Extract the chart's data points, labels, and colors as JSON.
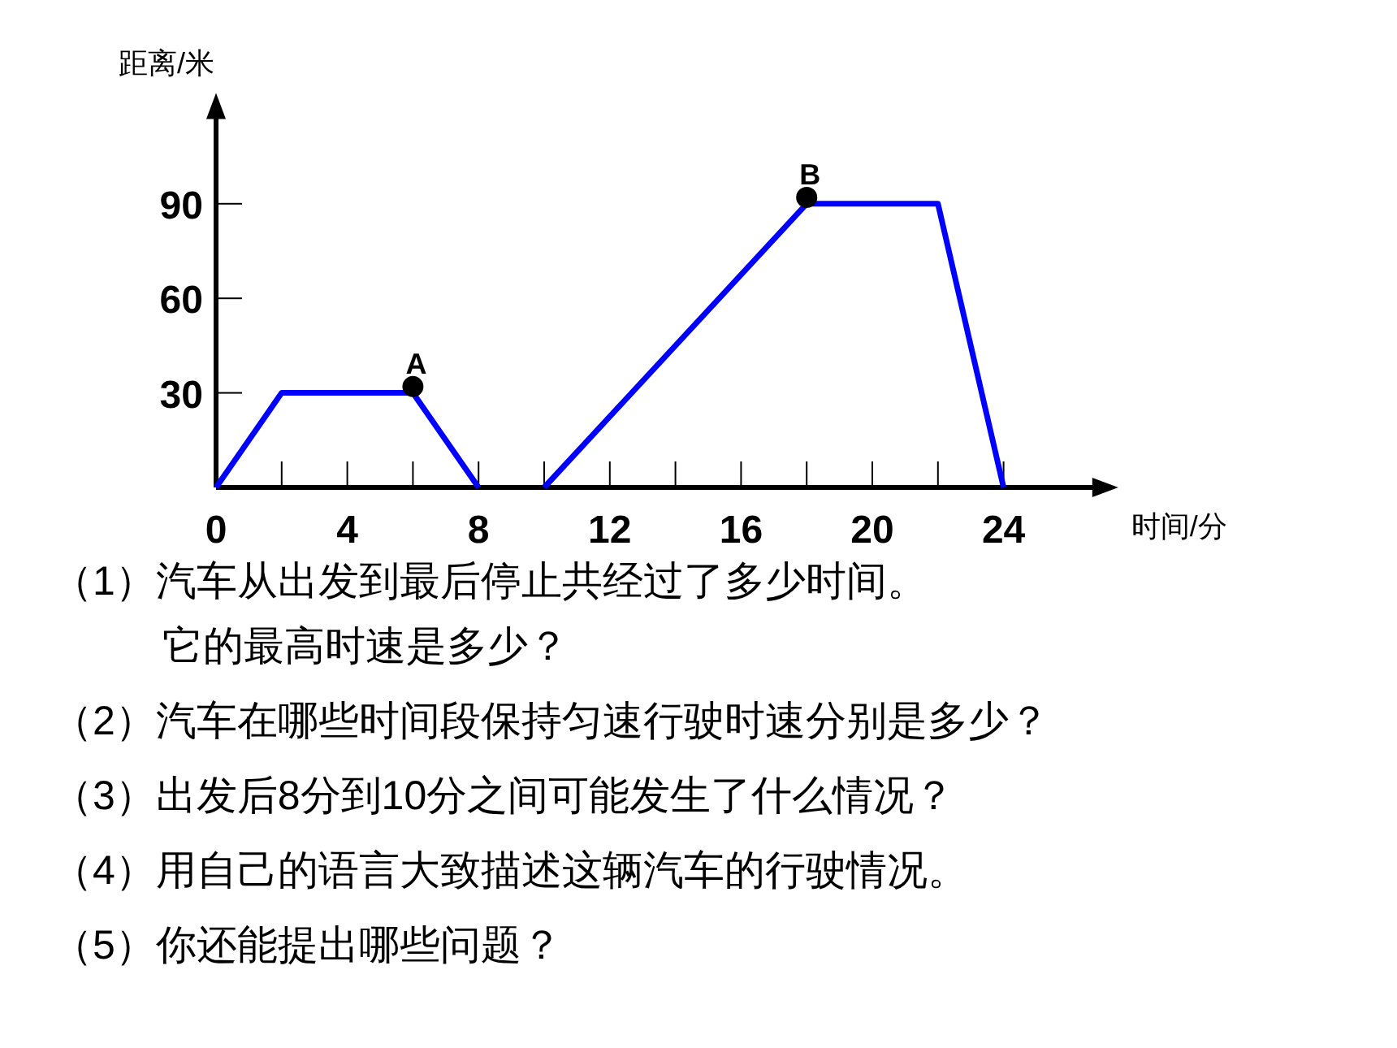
{
  "chart_data": {
    "type": "line",
    "xlabel": "时间/分",
    "ylabel": "距离/米",
    "xlim": [
      0,
      27
    ],
    "ylim": [
      0,
      120
    ],
    "xticks": [
      0,
      {
        "value": 2,
        "label": null
      },
      4,
      {
        "value": 6,
        "label": null
      },
      8,
      {
        "value": 10,
        "label": null
      },
      12,
      {
        "value": 14,
        "label": null
      },
      16,
      {
        "value": 18,
        "label": null
      },
      20,
      {
        "value": 22,
        "label": null
      },
      24
    ],
    "yticks": [
      30,
      60,
      90
    ],
    "series": [
      {
        "color": "#0000ff",
        "x": [
          0,
          2,
          6,
          8
        ],
        "values": [
          0,
          30,
          30,
          0
        ]
      },
      {
        "color": "#0000ff",
        "x": [
          10,
          18,
          22,
          24
        ],
        "values": [
          0,
          90,
          90,
          0
        ]
      },
      {
        "type": "scatter",
        "color": "#000000",
        "marker": "circle",
        "x": [
          6,
          18
        ],
        "values": [
          32,
          92
        ]
      }
    ],
    "annotations": [
      {
        "text": "A",
        "x": 6,
        "y": 32
      },
      {
        "text": "B",
        "x": 18,
        "y": 92
      },
      "（1）汽车从出发到最后停止共经过了多少时间。",
      "它的最高时速是多少？",
      "（2）汽车在哪些时间段保持匀速行驶时速分别是多少？",
      "（3）出发后8分到10分之间可能发生了什么情况？",
      "（4）用自己的语言大致描述这辆汽车的行驶情况。",
      "（5）你还能提出哪些问题？"
    ],
    "grid": false
  }
}
